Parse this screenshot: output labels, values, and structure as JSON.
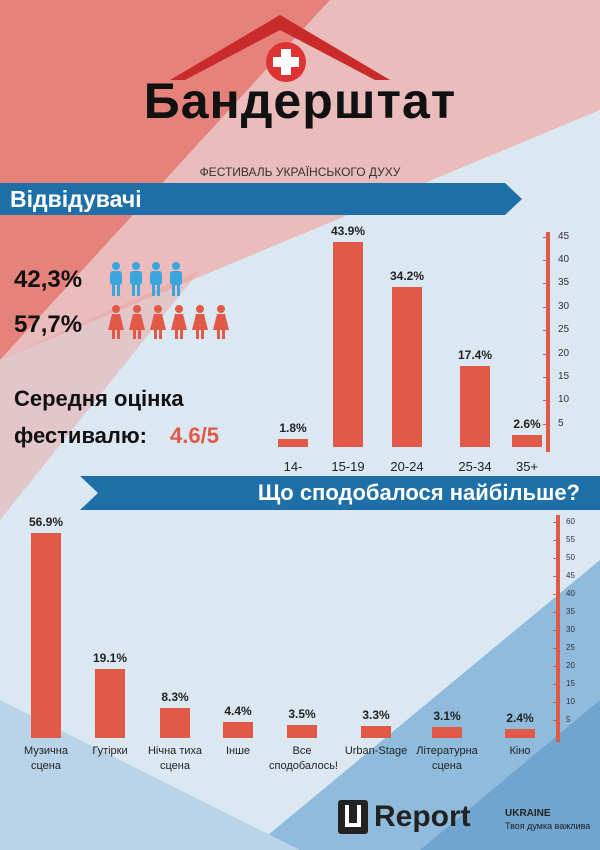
{
  "header": {
    "title": "Бандерштат",
    "subtitle": "ФЕСТИВАЛЬ УКРАЇНСЬКОГО ДУХУ"
  },
  "visitors": {
    "heading": "Відвідувачі",
    "male_share": "42,3%",
    "female_share": "57,7%",
    "rating_line1": "Середня оцінка",
    "rating_line2": "фестивалю:",
    "rating_value": "4.6/5"
  },
  "chart_data": [
    {
      "type": "bar",
      "categories": [
        "14-",
        "15-19",
        "20-24",
        "25-34",
        "35+"
      ],
      "values": [
        1.8,
        43.9,
        34.2,
        17.4,
        2.6
      ],
      "value_labels": [
        "1.8%",
        "43.9%",
        "34.2%",
        "17.4%",
        "2.6%"
      ],
      "color": "#e05a47",
      "ylim": [
        0,
        46
      ],
      "yticks": [
        5,
        10,
        15,
        20,
        25,
        30,
        35,
        40,
        45
      ]
    },
    {
      "type": "bar",
      "title": "Що сподобалося найбільше?",
      "categories": [
        "Музична сцена",
        "Гутірки",
        "Нічна тиха сцена",
        "Інше",
        "Все сподобалось!",
        "Urban-Stage",
        "Літературна сцена",
        "Кіно"
      ],
      "values": [
        56.9,
        19.1,
        8.3,
        4.4,
        3.5,
        3.3,
        3.1,
        2.4
      ],
      "value_labels": [
        "56.9%",
        "19.1%",
        "8.3%",
        "4.4%",
        "3.5%",
        "3.3%",
        "3.1%",
        "2.4%"
      ],
      "color": "#e05a47",
      "ylim": [
        0,
        62
      ],
      "yticks": [
        5,
        10,
        15,
        20,
        25,
        30,
        35,
        40,
        45,
        50,
        55,
        60
      ]
    }
  ],
  "footer": {
    "brand": "Report",
    "country": "UKRAINE",
    "slogan": "Твоя думка важлива"
  }
}
